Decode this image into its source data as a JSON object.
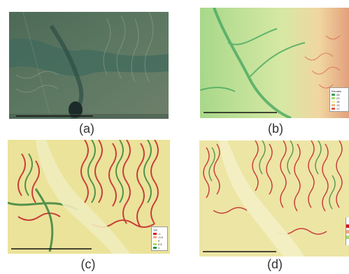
{
  "panels": [
    {
      "id": "a",
      "label": "(a)",
      "kind": "satellite"
    },
    {
      "id": "b",
      "label": "(b)",
      "kind": "dem"
    },
    {
      "id": "c",
      "label": "(c)",
      "kind": "index"
    },
    {
      "id": "d",
      "label": "(d)",
      "kind": "index"
    }
  ],
  "legend_b": {
    "title": "Elevatio",
    "entries": [
      {
        "label": "28",
        "color": "#3a9d5a"
      },
      {
        "label": "23",
        "color": "#a6d86e"
      },
      {
        "label": "18",
        "color": "#f3f0a8"
      },
      {
        "label": "13",
        "color": "#f2b27a"
      },
      {
        "label": "17",
        "color": "#e0584e"
      }
    ]
  },
  "legend_c": {
    "title": "TPI",
    "entries": [
      {
        "label": "-1",
        "color": "#d7191c"
      },
      {
        "label": "-0.5",
        "color": "#f4a582"
      },
      {
        "label": "0",
        "color": "#ffffbf"
      },
      {
        "label": "0.5",
        "color": "#a6d96a"
      },
      {
        "label": "1",
        "color": "#1a9641"
      }
    ]
  },
  "colors": {
    "sat_base": "#56705a",
    "dem_base": "#b9dc90",
    "index_base": "#ece39a",
    "ridge_red": "#c2232b",
    "valley_green": "#2f7d3a"
  }
}
